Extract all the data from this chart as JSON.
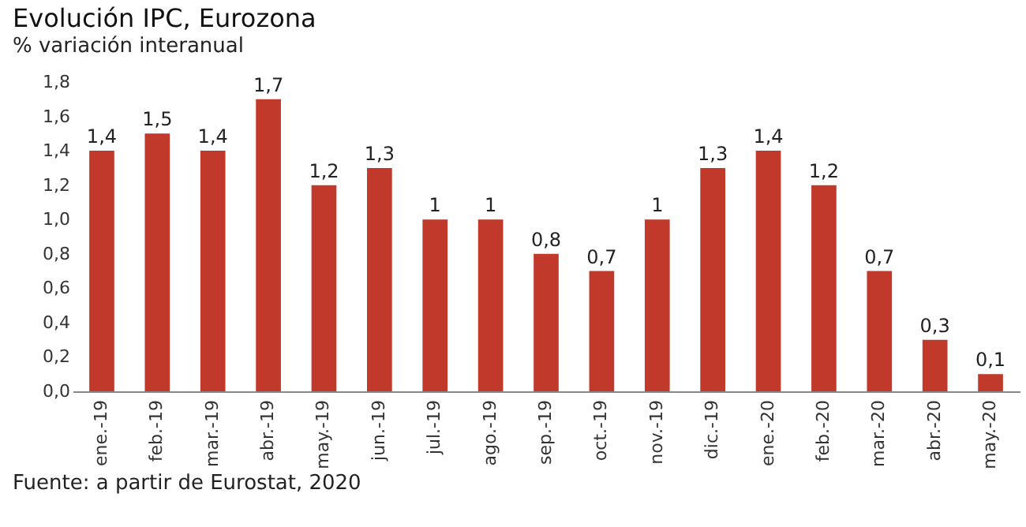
{
  "chart_data": {
    "type": "bar",
    "title": "Evolución IPC, Eurozona",
    "subtitle": "% variación interanual",
    "categories": [
      "ene.-19",
      "feb.-19",
      "mar.-19",
      "abr.-19",
      "may.-19",
      "jun.-19",
      "jul.-19",
      "ago.-19",
      "sep.-19",
      "oct.-19",
      "nov.-19",
      "dic.-19",
      "ene.-20",
      "feb.-20",
      "mar.-20",
      "abr.-20",
      "may.-20"
    ],
    "values": [
      1.4,
      1.5,
      1.4,
      1.7,
      1.2,
      1.3,
      1,
      1,
      0.8,
      0.7,
      1,
      1.3,
      1.4,
      1.2,
      0.7,
      0.3,
      0.1
    ],
    "value_labels": [
      "1,4",
      "1,5",
      "1,4",
      "1,7",
      "1,2",
      "1,3",
      "1",
      "1",
      "0,8",
      "0,7",
      "1",
      "1,3",
      "1,4",
      "1,2",
      "0,7",
      "0,3",
      "0,1"
    ],
    "color": "#c0392b",
    "ylim": [
      0,
      1.8
    ],
    "yticks": [
      {
        "value": 0,
        "label": "0,0"
      },
      {
        "value": 0.2,
        "label": "0,2"
      },
      {
        "value": 0.4,
        "label": "0,4"
      },
      {
        "value": 0.6,
        "label": "0,6"
      },
      {
        "value": 0.8,
        "label": "0,8"
      },
      {
        "value": 1,
        "label": "1,0"
      },
      {
        "value": 1.2,
        "label": "1,2"
      },
      {
        "value": 1.4,
        "label": "1,4"
      },
      {
        "value": 1.6,
        "label": "1,6"
      },
      {
        "value": 1.8,
        "label": "1,8"
      }
    ],
    "grid": false,
    "annotations": [
      "Fuente: a partir de Eurostat, 2020"
    ]
  }
}
